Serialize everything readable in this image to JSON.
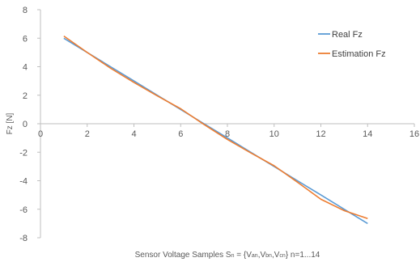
{
  "chart_data": {
    "type": "line",
    "title": "",
    "xlabel_parts": [
      "Sensor Voltage Samples S",
      "n",
      " = {V",
      "an",
      ",V",
      "bn",
      ",V",
      "cn",
      "} n=1...14"
    ],
    "ylabel": "Fz [N]",
    "xlim": [
      0,
      16
    ],
    "ylim": [
      -8,
      8
    ],
    "x_ticks": [
      0,
      2,
      4,
      6,
      8,
      10,
      12,
      14,
      16
    ],
    "y_ticks": [
      -8,
      -6,
      -4,
      -2,
      0,
      2,
      4,
      6,
      8
    ],
    "grid": "none",
    "legend_position": "top-right",
    "series": [
      {
        "name": "Real Fz",
        "color": "#5B9BD5",
        "x": [
          1,
          2,
          3,
          4,
          5,
          6,
          7,
          8,
          9,
          10,
          11,
          12,
          13,
          14
        ],
        "values": [
          6.0,
          5.0,
          4.0,
          3.0,
          2.0,
          1.0,
          0.0,
          -1.0,
          -2.0,
          -3.0,
          -4.0,
          -5.0,
          -6.0,
          -7.0
        ]
      },
      {
        "name": "Estimation Fz",
        "color": "#ED7D31",
        "x": [
          1,
          2,
          3,
          4,
          5,
          6,
          7,
          8,
          9,
          10,
          11,
          12,
          13,
          14
        ],
        "values": [
          6.15,
          5.0,
          3.9,
          2.9,
          1.95,
          1.05,
          -0.05,
          -1.1,
          -2.05,
          -2.95,
          -4.1,
          -5.3,
          -6.1,
          -6.65
        ]
      }
    ]
  }
}
